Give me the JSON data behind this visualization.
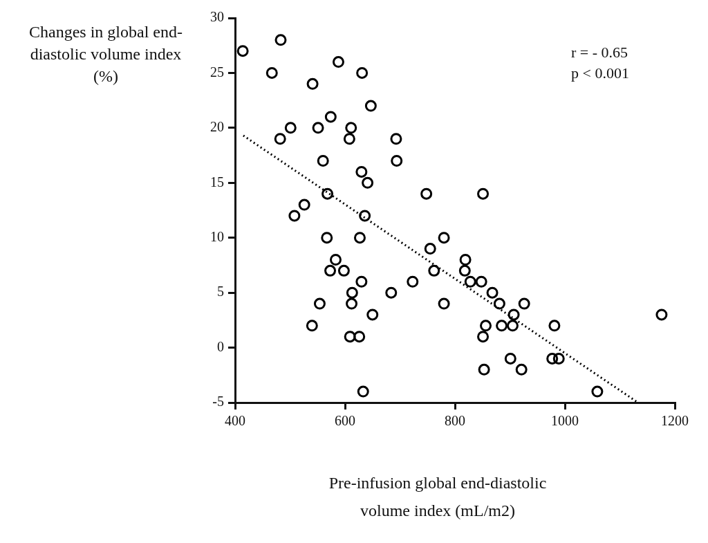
{
  "chart_data": {
    "type": "scatter",
    "xlabel": "Pre-infusion global end-diastolic volume index (mL/m2)",
    "ylabel": "Changes in global end-diastolic volume index (%)",
    "annotations": [
      "r = - 0.65",
      "p < 0.001"
    ],
    "xlim": [
      400,
      1200
    ],
    "xticks": [
      400,
      600,
      800,
      1000,
      1200
    ],
    "ylim": [
      -5,
      30
    ],
    "yticks": [
      -5,
      0,
      5,
      10,
      15,
      20,
      25,
      30
    ],
    "grid": false,
    "legend": false,
    "marker": "circle",
    "series": [
      {
        "type": "scatter",
        "color": "#000000",
        "x": [
          414,
          483,
          467,
          541,
          588,
          631,
          647,
          574,
          501,
          551,
          611,
          482,
          608,
          693,
          560,
          694,
          630,
          641,
          748,
          568,
          526,
          508,
          636,
          567,
          627,
          583,
          573,
          598,
          630,
          613,
          612,
          554,
          540,
          650,
          609,
          626,
          633,
          684,
          723,
          755,
          762,
          780,
          780,
          851,
          819,
          818,
          828,
          848,
          868,
          881,
          926,
          907,
          856,
          885,
          905,
          981,
          851,
          901,
          921,
          853,
          977,
          989,
          1059,
          1176
        ],
        "values": [
          27,
          28,
          25,
          24,
          26,
          25,
          22,
          21,
          20,
          20,
          20,
          19,
          19,
          19,
          17,
          17,
          16,
          15,
          14,
          14,
          13,
          12,
          12,
          10,
          10,
          8,
          7,
          7,
          6,
          5,
          4,
          4,
          2,
          3,
          1,
          1,
          -4,
          5,
          6,
          9,
          7,
          10,
          4,
          14,
          8,
          7,
          6,
          6,
          5,
          4,
          4,
          3,
          2,
          2,
          2,
          2,
          1,
          -1,
          -2,
          -2,
          -1,
          -1,
          -4,
          3
        ]
      },
      {
        "type": "line",
        "color": "#000000",
        "line_style": "dotted",
        "marker": "none",
        "x": [
          415,
          1133
        ],
        "values": [
          19.3,
          -5
        ]
      }
    ]
  }
}
